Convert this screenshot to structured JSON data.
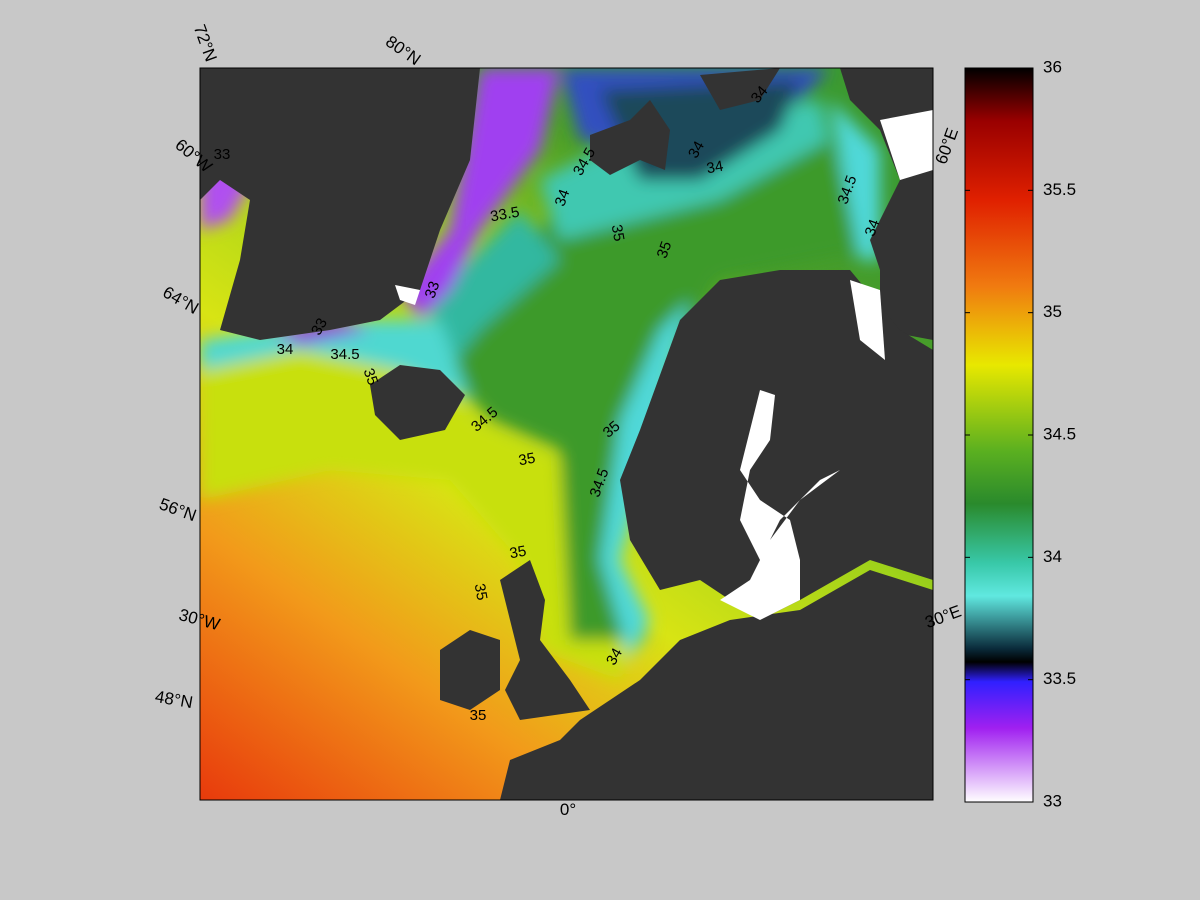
{
  "map": {
    "graticule_labels": [
      "72°N",
      "80°N",
      "60°W",
      "64°N",
      "56°N",
      "30°W",
      "48°N",
      "0°",
      "60°E",
      "30°E"
    ],
    "contour_labels": [
      "33",
      "33.5",
      "34.5",
      "34",
      "34",
      "34",
      "34",
      "34.5",
      "34",
      "35",
      "35",
      "33",
      "33",
      "34",
      "34.5",
      "35",
      "34.5",
      "35",
      "35",
      "34.5",
      "35",
      "35",
      "34",
      "35"
    ]
  },
  "colorbar": {
    "range": [
      33,
      36
    ],
    "ticks": [
      33,
      33.5,
      34,
      34.5,
      35,
      35.5,
      36
    ]
  }
}
